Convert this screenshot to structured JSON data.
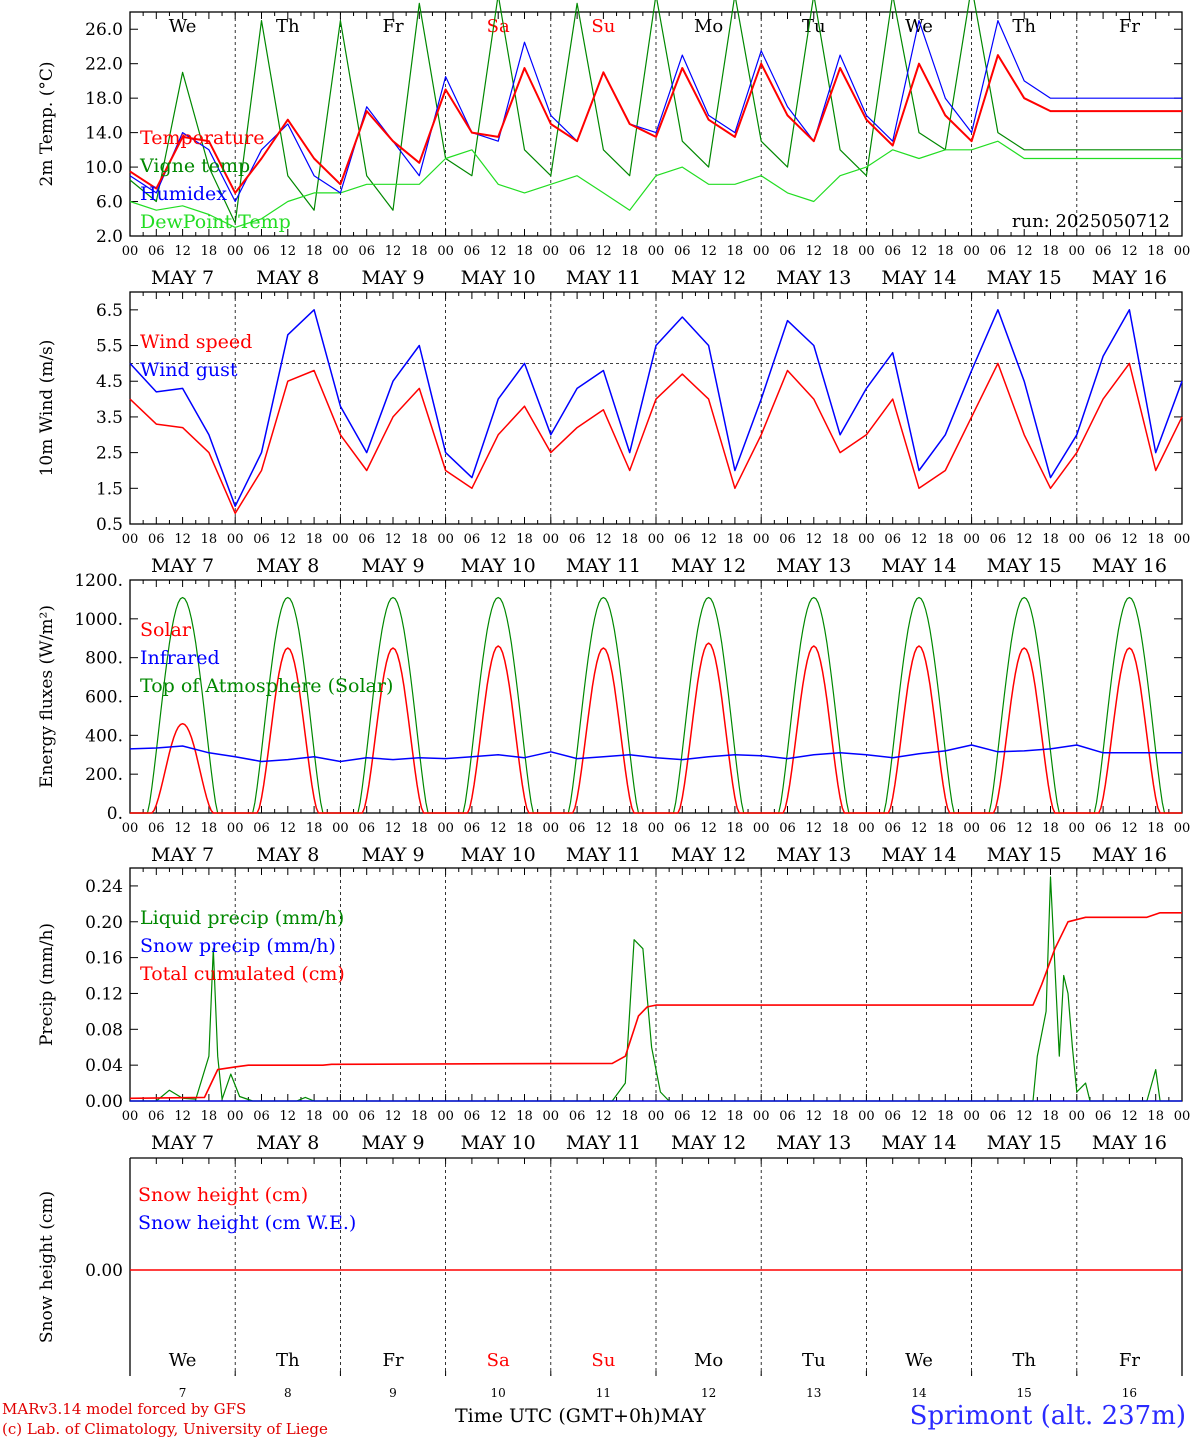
{
  "footer": {
    "model": "MARv3.14 model forced by GFS",
    "credit": "(c) Lab. of Climatology, University of Liege",
    "xlabel": "Time UTC (GMT+0h)MAY",
    "station": "Sprimont (alt. 237m)"
  },
  "colors": {
    "red": "#ff0000",
    "blue": "#0000ff",
    "green": "#008800",
    "lightgreen": "#22dd22",
    "weekend": "#ff0000"
  },
  "chart_data": [
    {
      "type": "line",
      "id": "temperature",
      "ylabel": "2m Temp. (°C)",
      "ylim": [
        2.0,
        28.0
      ],
      "yticks": [
        "2.0",
        "6.0",
        "10.0",
        "14.0",
        "18.0",
        "22.0",
        "26.0"
      ],
      "ytick_values": [
        2,
        6,
        10,
        14,
        18,
        22,
        26
      ],
      "day_labels": [
        "We",
        "Th",
        "Fr",
        "Sa",
        "Su",
        "Mo",
        "Tu",
        "We",
        "Th",
        "Fr"
      ],
      "weekend_days": [
        3,
        4
      ],
      "annotation": "run: 2025050712",
      "x_hours": [
        0,
        6,
        12,
        18,
        24,
        30,
        36,
        42,
        48,
        54,
        60,
        66,
        72,
        78,
        84,
        90,
        96,
        102,
        108,
        114,
        120,
        126,
        132,
        138,
        144,
        150,
        156,
        162,
        168,
        174,
        180,
        186,
        192,
        198,
        204,
        210,
        216,
        222,
        228,
        234,
        240
      ],
      "series": [
        {
          "name": "Temperature",
          "color": "#ff0000",
          "values": [
            9.5,
            7.5,
            13.5,
            13,
            7,
            11,
            15.5,
            11,
            8,
            16.5,
            13,
            10.5,
            19,
            14,
            13.5,
            21.5,
            15,
            13,
            21,
            15,
            13.5,
            21.5,
            15.5,
            13.5,
            22,
            16,
            13,
            21.5,
            15.5,
            12.5,
            22,
            16,
            13,
            23,
            18,
            16.5,
            16.5,
            16.5,
            16.5,
            16.5,
            16.5
          ]
        },
        {
          "name": "Vigne temp",
          "color": "#008800",
          "values": [
            8.5,
            6,
            21,
            10,
            3.5,
            27,
            9,
            5,
            27,
            9,
            5,
            29,
            11,
            9,
            30,
            12,
            9,
            29,
            12,
            9,
            30,
            13,
            10,
            30,
            13,
            10,
            30,
            12,
            9,
            30,
            14,
            12,
            31,
            14,
            12,
            12,
            12,
            12,
            12,
            12,
            12
          ]
        },
        {
          "name": "Humidex",
          "color": "#0000ff",
          "values": [
            9,
            7,
            14,
            12,
            6,
            12,
            15,
            9,
            7,
            17,
            13,
            9,
            20.5,
            14,
            13,
            24.5,
            16,
            13,
            21,
            15,
            14,
            23,
            16,
            14,
            23.5,
            17,
            13,
            23,
            16,
            13,
            27,
            18,
            14,
            27,
            20,
            18,
            18,
            18,
            18,
            18,
            18
          ]
        },
        {
          "name": "DewPoint Temp",
          "color": "#22dd22",
          "values": [
            6,
            5,
            5.5,
            4.5,
            3,
            4,
            6,
            7,
            7,
            8,
            8,
            8,
            11,
            12,
            8,
            7,
            8,
            9,
            7,
            5,
            9,
            10,
            8,
            8,
            9,
            7,
            6,
            9,
            10,
            12,
            11,
            12,
            12,
            13,
            11,
            11,
            11,
            11,
            11,
            11,
            11
          ]
        }
      ]
    },
    {
      "type": "line",
      "id": "wind",
      "ylabel": "10m Wind (m/s)",
      "ylim": [
        0.5,
        7.0
      ],
      "yticks": [
        "0.5",
        "1.5",
        "2.5",
        "3.5",
        "4.5",
        "5.5",
        "6.5"
      ],
      "ytick_values": [
        0.5,
        1.5,
        2.5,
        3.5,
        4.5,
        5.5,
        6.5
      ],
      "ref_line": 5.0,
      "x_hours": [
        0,
        6,
        12,
        18,
        24,
        30,
        36,
        42,
        48,
        54,
        60,
        66,
        72,
        78,
        84,
        90,
        96,
        102,
        108,
        114,
        120,
        126,
        132,
        138,
        144,
        150,
        156,
        162,
        168,
        174,
        180,
        186,
        192,
        198,
        204,
        210,
        216,
        222,
        228,
        234,
        240
      ],
      "series": [
        {
          "name": "Wind speed",
          "color": "#ff0000",
          "values": [
            4,
            3.3,
            3.2,
            2.5,
            0.8,
            2,
            4.5,
            4.8,
            3,
            2,
            3.5,
            4.3,
            2,
            1.5,
            3,
            3.8,
            2.5,
            3.2,
            3.7,
            2,
            4,
            4.7,
            4,
            1.5,
            3,
            4.8,
            4,
            2.5,
            3,
            4,
            1.5,
            2,
            3.5,
            5,
            3,
            1.5,
            2.5,
            4,
            5,
            2,
            3.5
          ]
        },
        {
          "name": "Wind gust",
          "color": "#0000ff",
          "values": [
            5,
            4.2,
            4.3,
            3,
            1,
            2.5,
            5.8,
            6.5,
            3.8,
            2.5,
            4.5,
            5.5,
            2.5,
            1.8,
            4,
            5,
            3,
            4.3,
            4.8,
            2.5,
            5.5,
            6.3,
            5.5,
            2,
            4,
            6.2,
            5.5,
            3,
            4.3,
            5.3,
            2,
            3,
            4.8,
            6.5,
            4.5,
            1.8,
            3,
            5.2,
            6.5,
            2.5,
            4.5
          ]
        }
      ]
    },
    {
      "type": "line",
      "id": "energy",
      "ylabel": "Energy fluxes (W/m²)",
      "ylim": [
        0,
        1200
      ],
      "yticks": [
        "0.",
        "200.",
        "400.",
        "600.",
        "800.",
        "1000.",
        "1200."
      ],
      "ytick_values": [
        0,
        200,
        400,
        600,
        800,
        1000,
        1200
      ],
      "solar_peaks": [
        460,
        850,
        850,
        860,
        850,
        875,
        860,
        860,
        850,
        850
      ],
      "toa_peak": 1110,
      "infrared_values": [
        330,
        335,
        345,
        310,
        290,
        265,
        275,
        290,
        265,
        285,
        275,
        285,
        280,
        290,
        300,
        285,
        315,
        280,
        290,
        300,
        285,
        275,
        290,
        300,
        295,
        280,
        300,
        310,
        300,
        285,
        305,
        320,
        350,
        315,
        320,
        330,
        350,
        310,
        310,
        310,
        310
      ],
      "series": [
        {
          "name": "Solar",
          "color": "#ff0000"
        },
        {
          "name": "Infrared",
          "color": "#0000ff"
        },
        {
          "name": "Top of Atmosphere (Solar)",
          "color": "#008800"
        }
      ]
    },
    {
      "type": "line",
      "id": "precip",
      "ylabel": "Precip (mm/h)",
      "ylim": [
        0,
        0.26
      ],
      "yticks": [
        "0.00",
        "0.04",
        "0.08",
        "0.12",
        "0.16",
        "0.20",
        "0.24"
      ],
      "ytick_values": [
        0,
        0.04,
        0.08,
        0.12,
        0.16,
        0.2,
        0.24
      ],
      "liquid_points": [
        [
          0,
          0
        ],
        [
          6,
          0
        ],
        [
          9,
          0.012
        ],
        [
          12,
          0.003
        ],
        [
          15,
          0.002
        ],
        [
          18,
          0.05
        ],
        [
          19,
          0.17
        ],
        [
          20,
          0.05
        ],
        [
          21,
          0.002
        ],
        [
          23,
          0.03
        ],
        [
          25,
          0.005
        ],
        [
          28,
          0
        ],
        [
          38,
          0
        ],
        [
          40,
          0.004
        ],
        [
          42,
          0
        ],
        [
          110,
          0
        ],
        [
          113,
          0.02
        ],
        [
          115,
          0.18
        ],
        [
          117,
          0.17
        ],
        [
          119,
          0.06
        ],
        [
          121,
          0.01
        ],
        [
          123,
          0
        ],
        [
          206,
          0
        ],
        [
          207,
          0.05
        ],
        [
          209,
          0.1
        ],
        [
          210,
          0.25
        ],
        [
          211,
          0.15
        ],
        [
          212,
          0.05
        ],
        [
          213,
          0.14
        ],
        [
          214,
          0.12
        ],
        [
          215,
          0.06
        ],
        [
          216,
          0.01
        ],
        [
          218,
          0.02
        ],
        [
          219,
          0
        ],
        [
          232,
          0
        ],
        [
          234,
          0.035
        ],
        [
          235,
          0
        ],
        [
          240,
          0
        ]
      ],
      "cumulated_points": [
        [
          0,
          0.003
        ],
        [
          17,
          0.004
        ],
        [
          20,
          0.035
        ],
        [
          24,
          0.038
        ],
        [
          27,
          0.04
        ],
        [
          44,
          0.04
        ],
        [
          46,
          0.041
        ],
        [
          110,
          0.042
        ],
        [
          113,
          0.05
        ],
        [
          116,
          0.095
        ],
        [
          118,
          0.105
        ],
        [
          120,
          0.107
        ],
        [
          206,
          0.107
        ],
        [
          208,
          0.13
        ],
        [
          211,
          0.17
        ],
        [
          214,
          0.2
        ],
        [
          218,
          0.205
        ],
        [
          232,
          0.205
        ],
        [
          235,
          0.21
        ],
        [
          240,
          0.21
        ]
      ],
      "series": [
        {
          "name": "Liquid precip (mm/h)",
          "color": "#008800"
        },
        {
          "name": "Snow precip (mm/h)",
          "color": "#0000ff"
        },
        {
          "name": "Total cumulated (cm)",
          "color": "#ff0000"
        }
      ]
    },
    {
      "type": "line",
      "id": "snow",
      "ylabel": "Snow height (cm)",
      "yticks": [
        "0.00"
      ],
      "ytick_values": [
        0
      ],
      "day_labels": [
        "We",
        "Th",
        "Fr",
        "Sa",
        "Su",
        "Mo",
        "Tu",
        "We",
        "Th",
        "Fr"
      ],
      "weekend_days": [
        3,
        4
      ],
      "day_numbers": [
        "7",
        "8",
        "9",
        "10",
        "11",
        "12",
        "13",
        "14",
        "15",
        "16"
      ],
      "series": [
        {
          "name": "Snow height (cm)",
          "color": "#ff0000",
          "values": [
            0,
            0
          ]
        },
        {
          "name": "Snow height (cm W.E.)",
          "color": "#0000ff",
          "values": [
            0,
            0
          ]
        }
      ]
    }
  ],
  "x_axis": {
    "hour_ticks": [
      "00",
      "06",
      "12",
      "18"
    ],
    "date_labels": [
      "MAY  7",
      "MAY  8",
      "MAY  9",
      "MAY 10",
      "MAY 11",
      "MAY 12",
      "MAY 13",
      "MAY 14",
      "MAY 15",
      "MAY 16"
    ]
  }
}
